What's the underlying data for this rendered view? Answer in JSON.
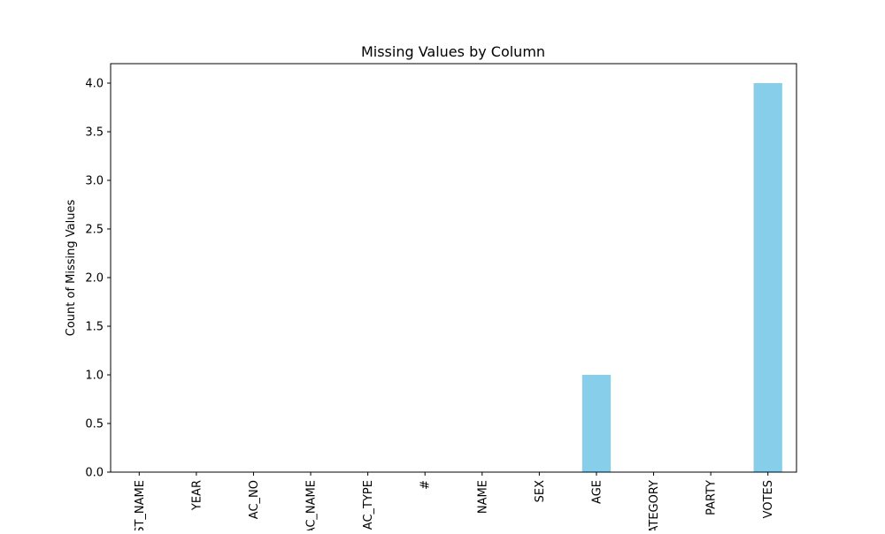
{
  "chart_data": {
    "type": "bar",
    "title": "Missing Values by Column",
    "xlabel": "",
    "ylabel": "Count of Missing Values",
    "categories": [
      "DIST_NAME",
      "YEAR",
      "AC_NO",
      "AC_NAME",
      "AC_TYPE",
      "#",
      "NAME",
      "SEX",
      "AGE",
      "CATEGORY",
      "PARTY",
      "VOTES"
    ],
    "values": [
      0,
      0,
      0,
      0,
      0,
      0,
      0,
      0,
      1,
      0,
      0,
      4
    ],
    "ylim": [
      0,
      4.2
    ],
    "yticks": [
      "0.0",
      "0.5",
      "1.0",
      "1.5",
      "2.0",
      "2.5",
      "3.0",
      "3.5",
      "4.0"
    ],
    "bar_color": "#87ceeb",
    "grid": false,
    "legend": "none"
  }
}
